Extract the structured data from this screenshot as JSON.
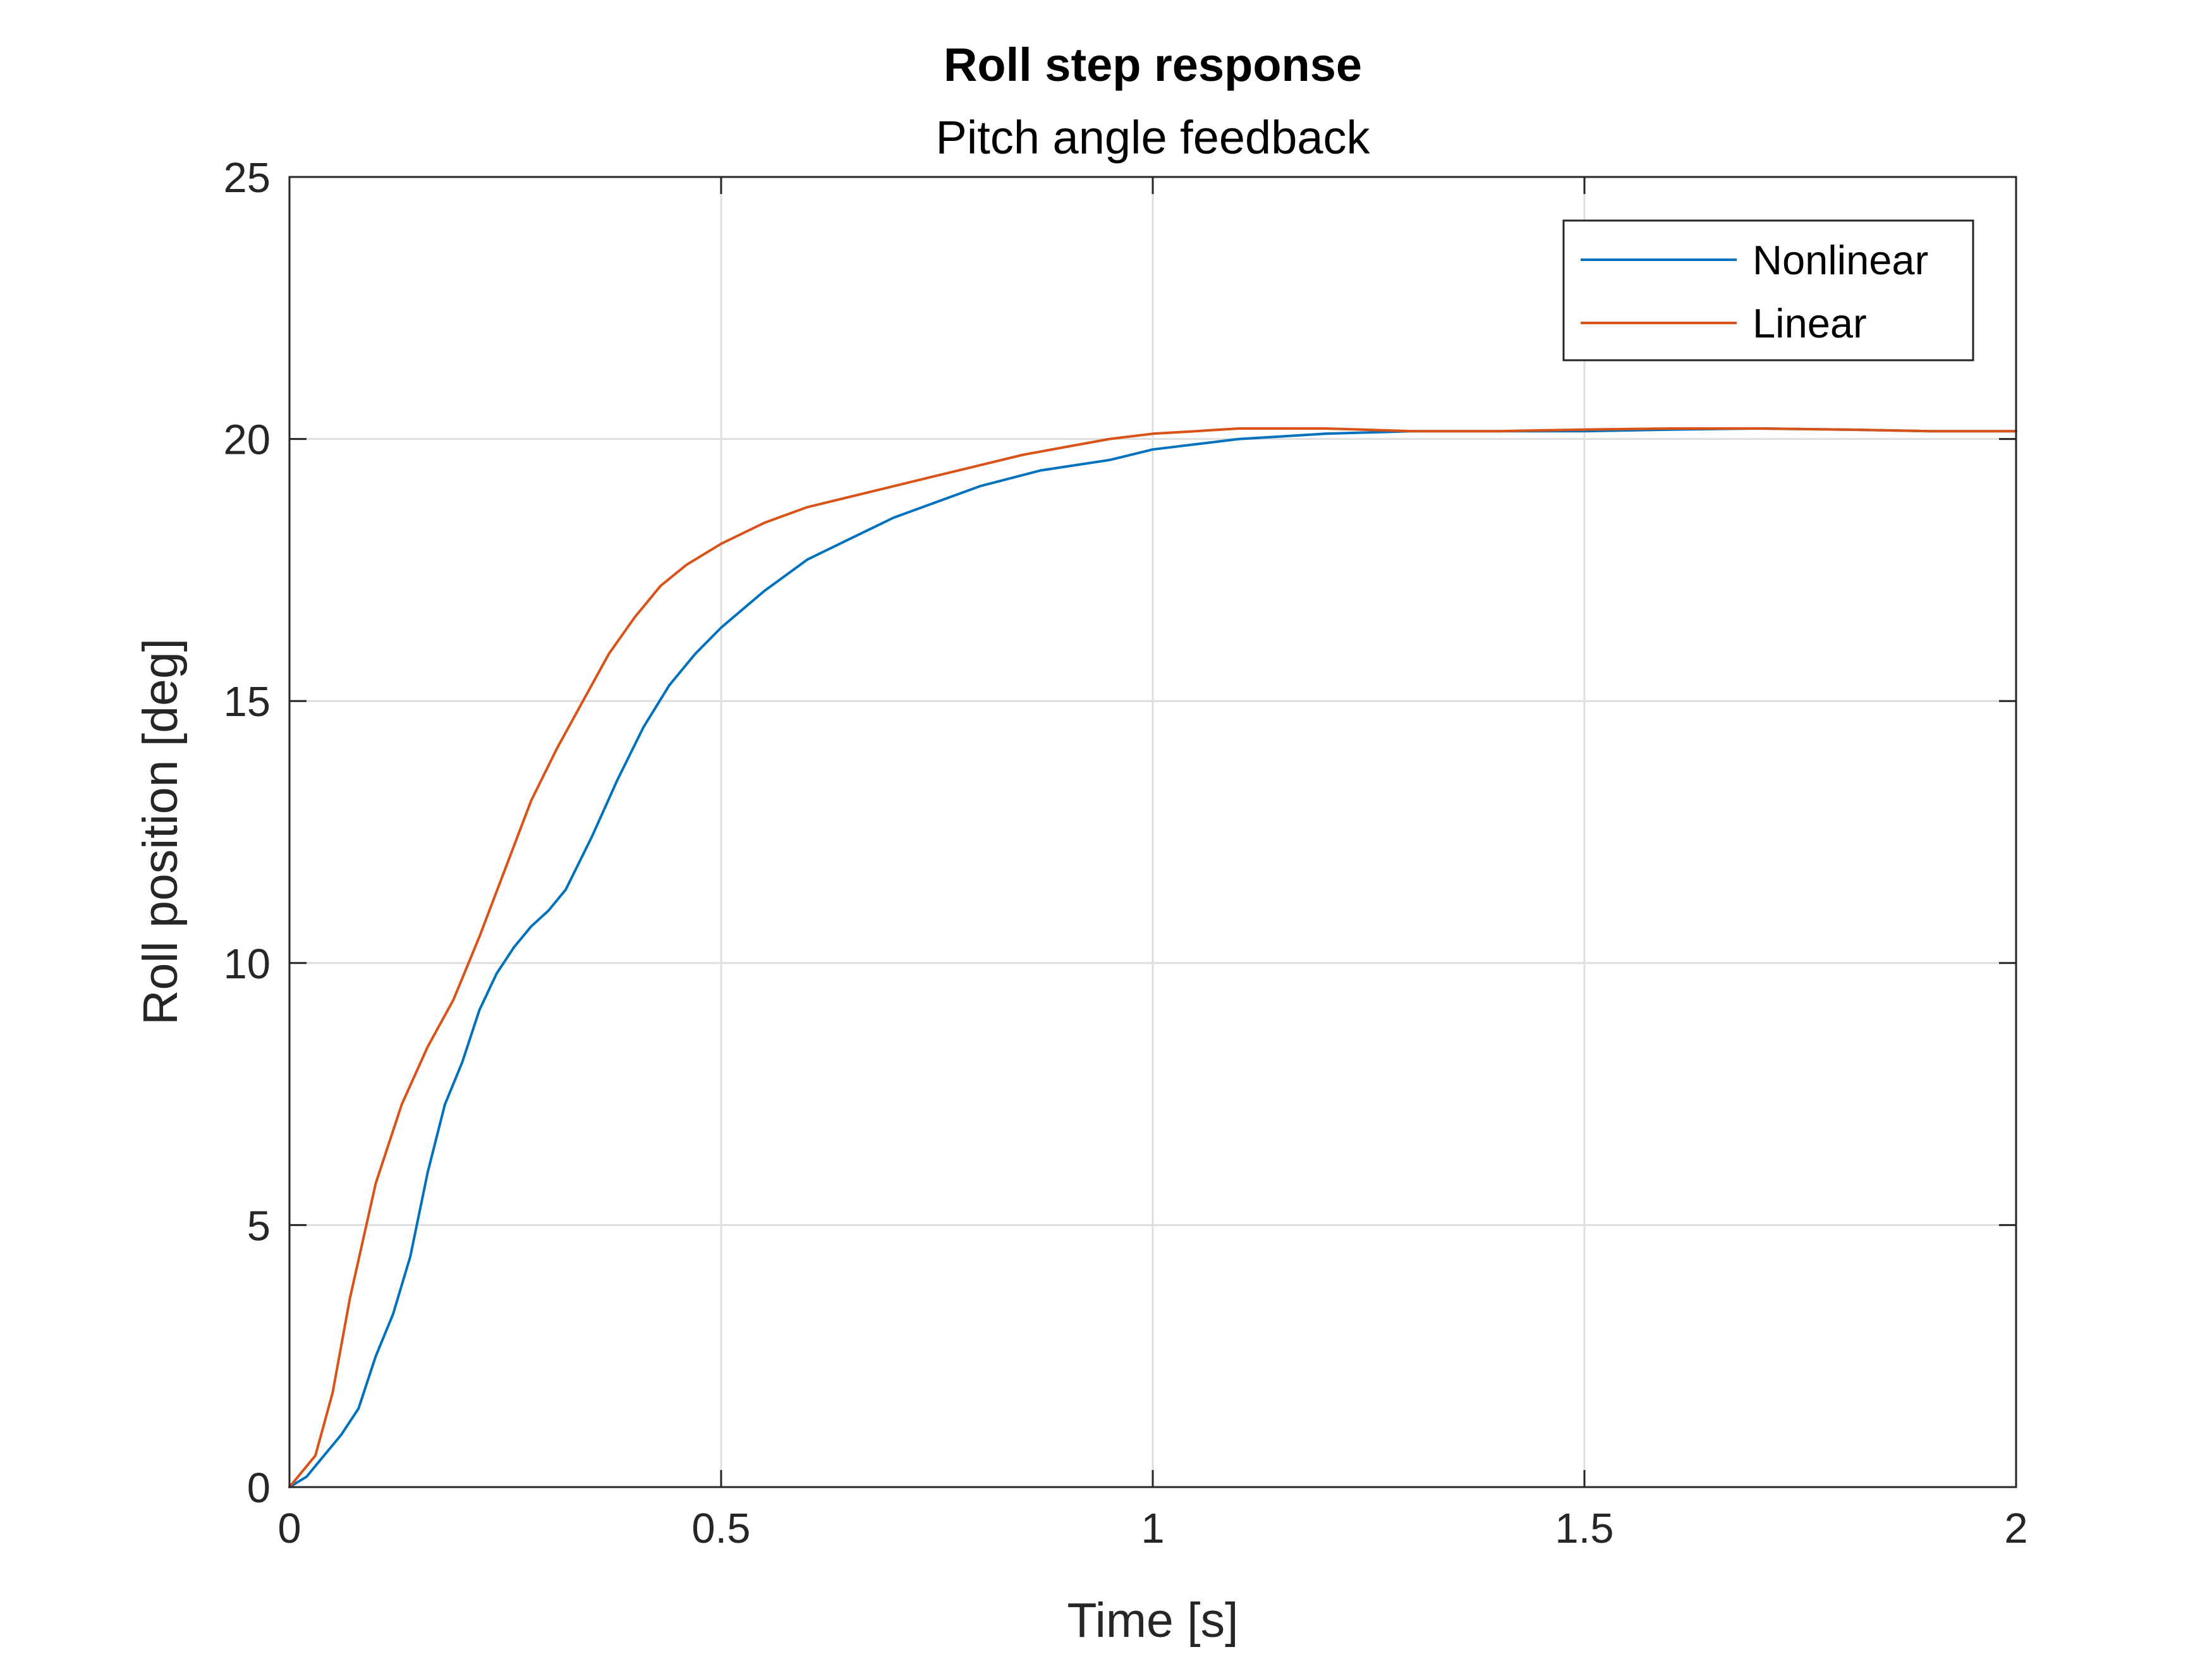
{
  "chart_data": {
    "type": "line",
    "title": "Roll step response",
    "subtitle": "Pitch angle feedback",
    "xlabel": "Time [s]",
    "ylabel": "Roll position [deg]",
    "xlim": [
      0,
      2
    ],
    "ylim": [
      0,
      25
    ],
    "xticks": [
      0,
      0.5,
      1,
      1.5,
      2
    ],
    "xtick_labels": [
      "0",
      "0.5",
      "1",
      "1.5",
      "2"
    ],
    "yticks": [
      0,
      5,
      10,
      15,
      20,
      25
    ],
    "ytick_labels": [
      "0",
      "5",
      "10",
      "15",
      "20",
      "25"
    ],
    "grid": true,
    "legend_position": "top-right",
    "series": [
      {
        "name": "Nonlinear",
        "color": "#0072BD",
        "x": [
          0,
          0.02,
          0.04,
          0.06,
          0.08,
          0.1,
          0.12,
          0.14,
          0.16,
          0.18,
          0.2,
          0.22,
          0.24,
          0.26,
          0.28,
          0.3,
          0.32,
          0.35,
          0.38,
          0.41,
          0.44,
          0.47,
          0.5,
          0.55,
          0.6,
          0.65,
          0.7,
          0.75,
          0.8,
          0.87,
          0.95,
          1.0,
          1.05,
          1.1,
          1.2,
          1.3,
          1.4,
          1.5,
          1.6,
          1.7,
          1.8,
          1.9,
          2.0
        ],
        "y": [
          0,
          0.2,
          0.6,
          1.0,
          1.5,
          2.5,
          3.3,
          4.4,
          6.0,
          7.3,
          8.1,
          9.1,
          9.8,
          10.3,
          10.7,
          11.0,
          11.4,
          12.4,
          13.5,
          14.5,
          15.3,
          15.9,
          16.4,
          17.1,
          17.7,
          18.1,
          18.5,
          18.8,
          19.1,
          19.4,
          19.6,
          19.8,
          19.9,
          20.0,
          20.1,
          20.15,
          20.15,
          20.15,
          20.18,
          20.2,
          20.18,
          20.15,
          20.15
        ]
      },
      {
        "name": "Linear",
        "color": "#D95319",
        "x": [
          0,
          0.02,
          0.03,
          0.05,
          0.07,
          0.1,
          0.13,
          0.16,
          0.19,
          0.22,
          0.25,
          0.28,
          0.31,
          0.34,
          0.37,
          0.4,
          0.43,
          0.46,
          0.5,
          0.55,
          0.6,
          0.65,
          0.7,
          0.75,
          0.8,
          0.85,
          0.9,
          0.95,
          1.0,
          1.05,
          1.1,
          1.2,
          1.3,
          1.4,
          1.5,
          1.6,
          1.7,
          1.8,
          1.9,
          2.0
        ],
        "y": [
          0,
          0.4,
          0.6,
          1.8,
          3.6,
          5.8,
          7.3,
          8.4,
          9.3,
          10.5,
          11.8,
          13.1,
          14.1,
          15.0,
          15.9,
          16.6,
          17.2,
          17.6,
          18.0,
          18.4,
          18.7,
          18.9,
          19.1,
          19.3,
          19.5,
          19.7,
          19.85,
          20.0,
          20.1,
          20.15,
          20.2,
          20.2,
          20.15,
          20.15,
          20.18,
          20.2,
          20.2,
          20.18,
          20.15,
          20.15
        ]
      }
    ]
  }
}
